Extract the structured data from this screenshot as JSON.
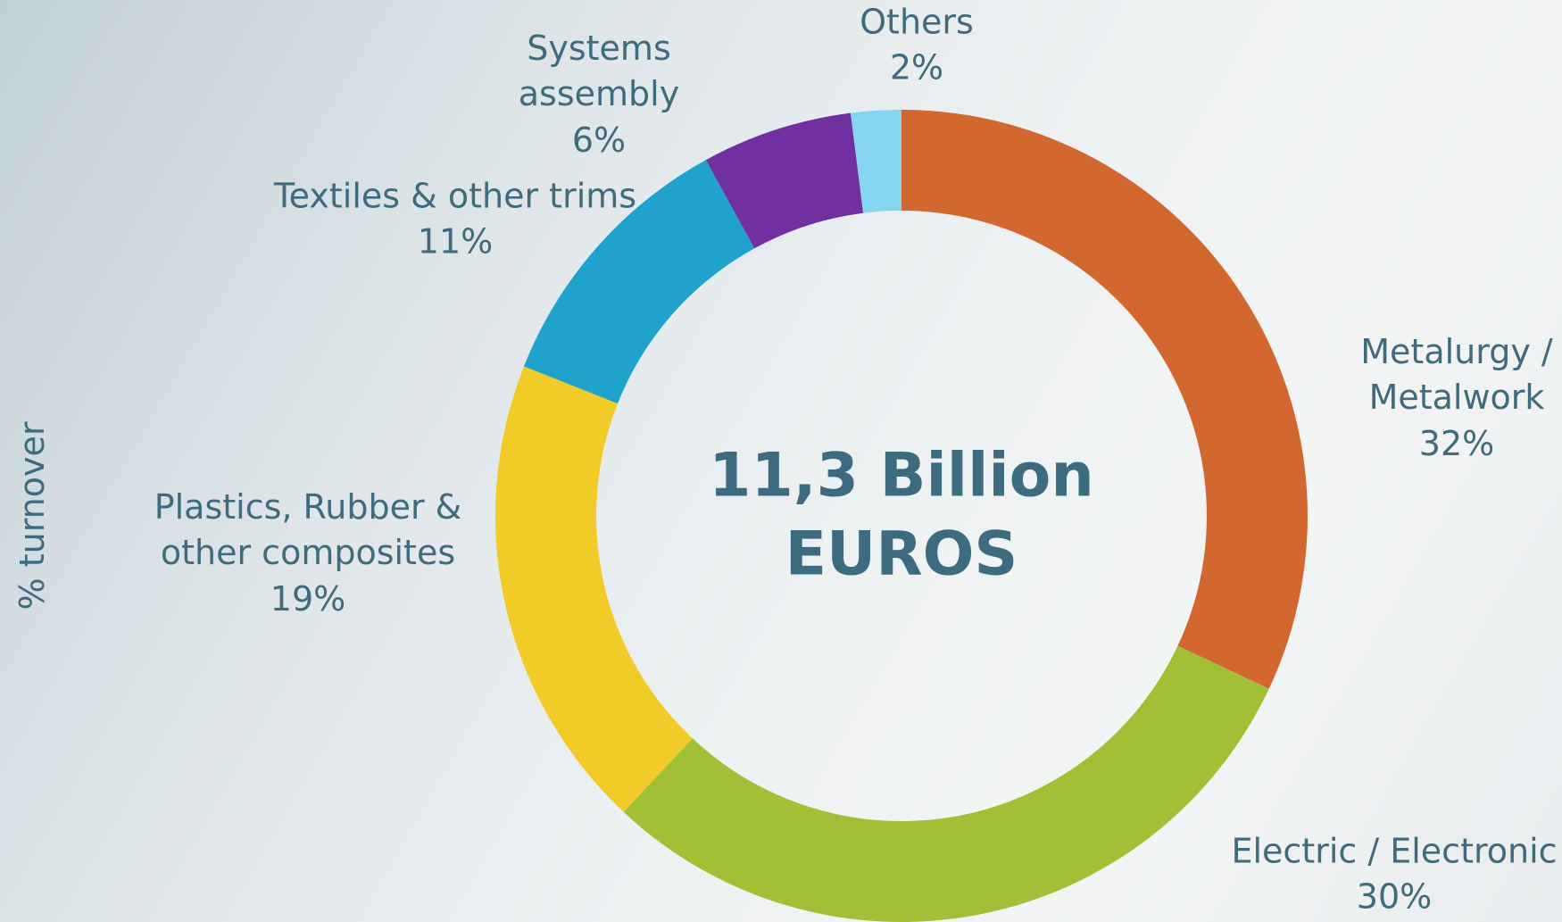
{
  "chart_data": {
    "type": "donut",
    "center_label": "11,3 Billion EUROS",
    "y_label": "% turnover",
    "categories": [
      "Metalurgy / Metalwork",
      "Electric / Electronic",
      "Plastics, Rubber & other composites",
      "Textiles & other trims",
      "Systems assembly",
      "Others"
    ],
    "values": [
      32,
      30,
      19,
      11,
      6,
      2
    ],
    "value_labels": [
      "32%",
      "30%",
      "19%",
      "11%",
      "6%",
      "2%"
    ],
    "colors": [
      "#d2672f",
      "#a2c035",
      "#f1cb28",
      "#1fa3cc",
      "#7030a0",
      "#84d5f0"
    ]
  }
}
